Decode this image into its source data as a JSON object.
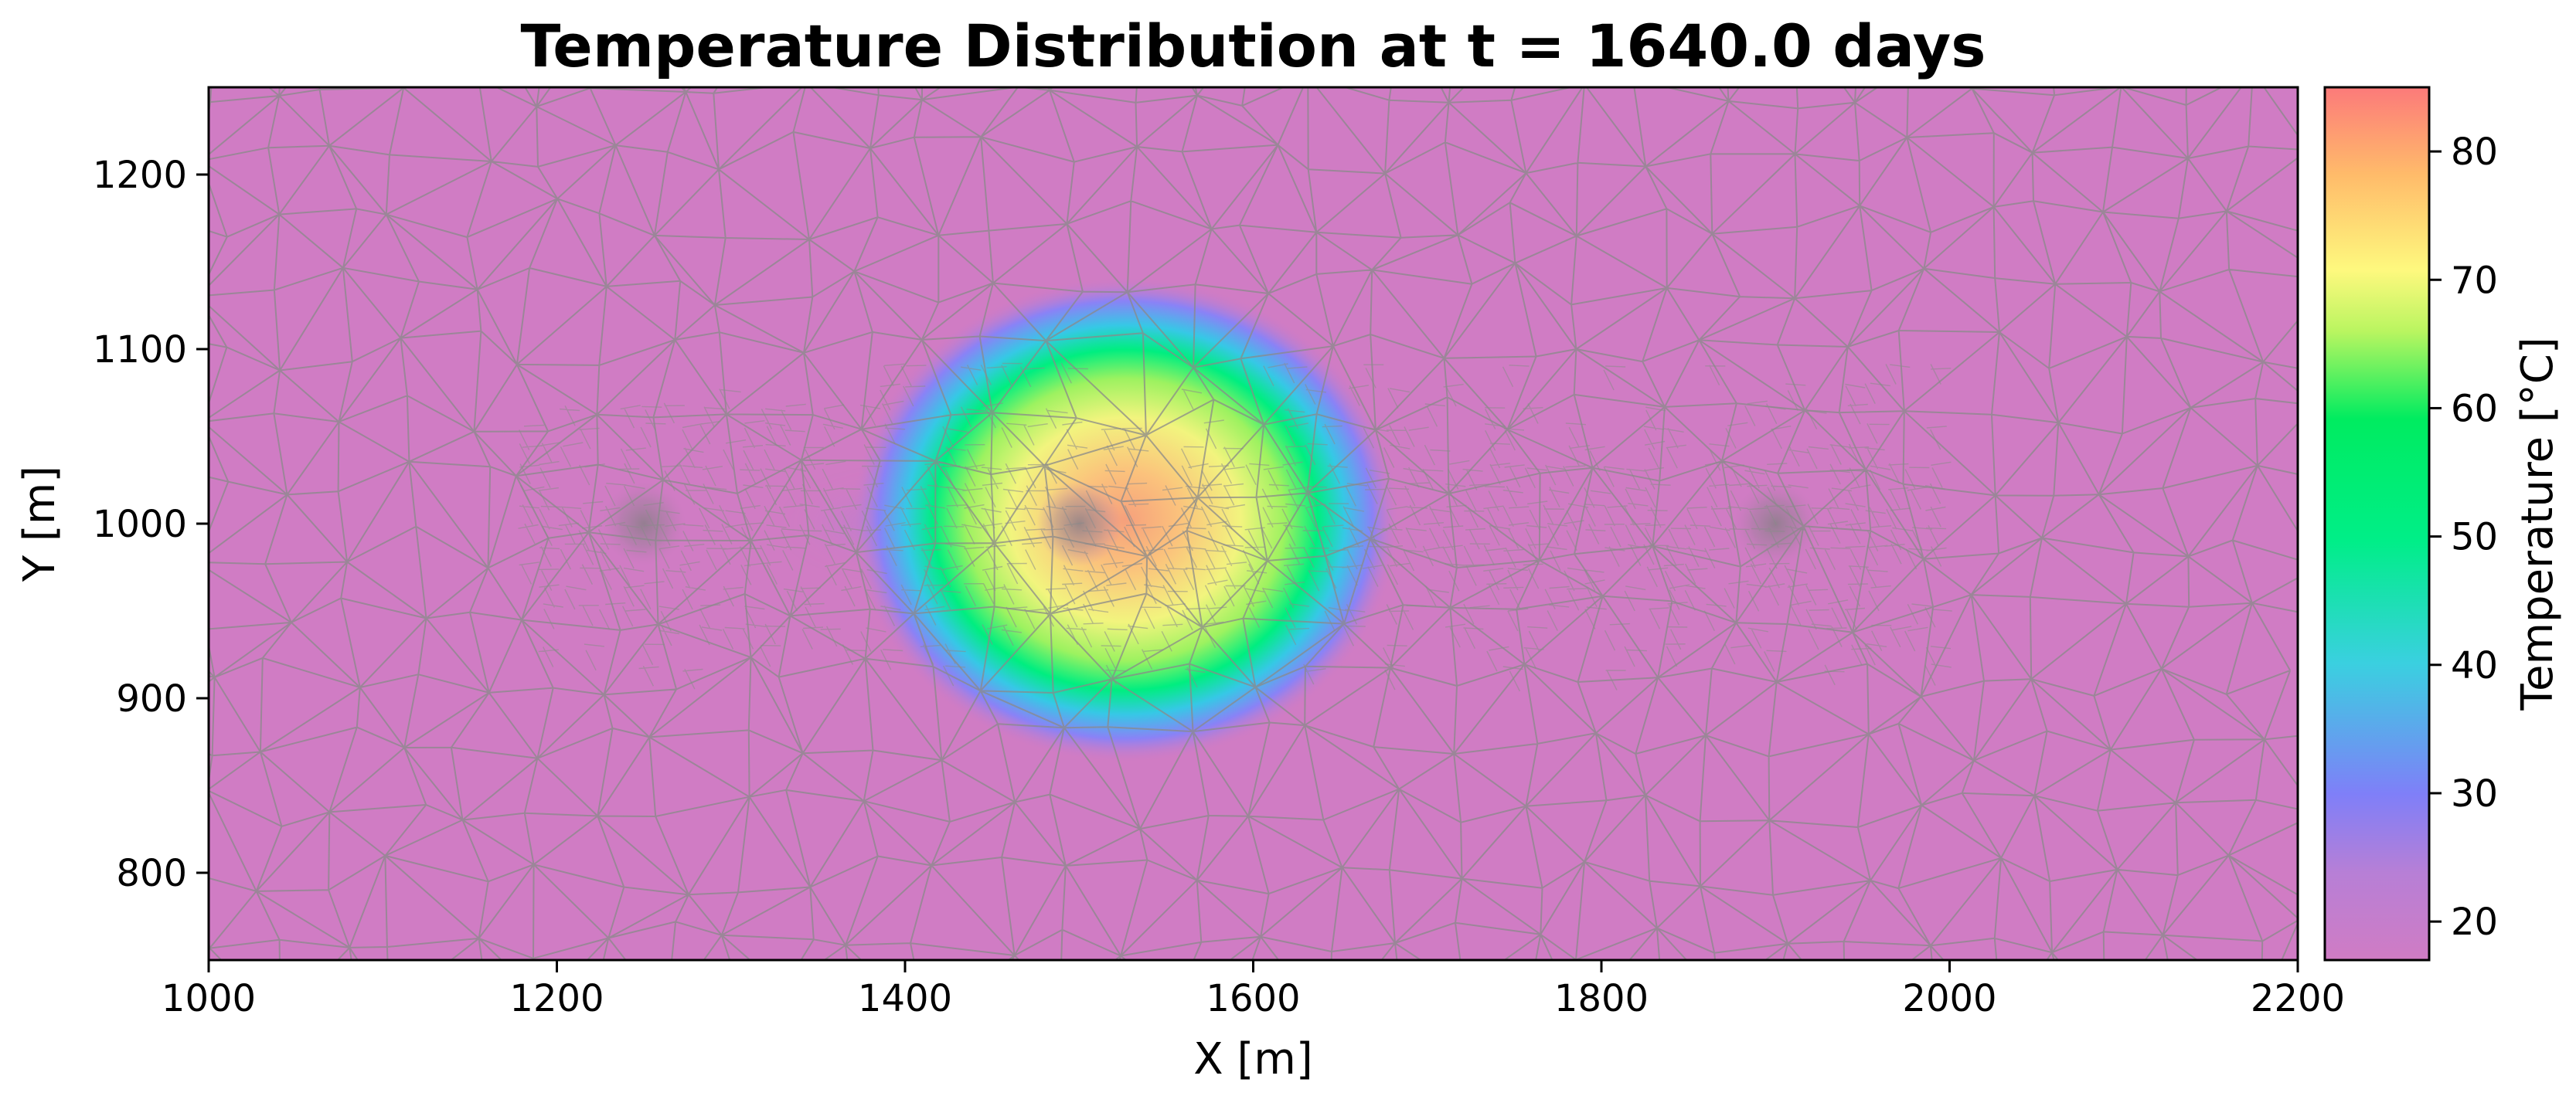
{
  "chart_data": {
    "type": "heatmap",
    "title": "Temperature Distribution at t = 1640.0 days",
    "xlabel": "X [m]",
    "ylabel": "Y [m]",
    "xlim": [
      1000,
      2200
    ],
    "ylim": [
      750,
      1250
    ],
    "x_ticks": [
      1000,
      1200,
      1400,
      1600,
      1800,
      2000,
      2200
    ],
    "y_ticks": [
      800,
      900,
      1000,
      1100,
      1200
    ],
    "colorbar": {
      "label": "Temperature [°C]",
      "range": [
        17,
        85
      ],
      "ticks": [
        20,
        30,
        40,
        50,
        60,
        70,
        80
      ],
      "colors": [
        "#d07cc4",
        "#7f7ff8",
        "#3ad0e0",
        "#00ee88",
        "#00ec60",
        "#b9f560",
        "#fef97e",
        "#ffbb6a",
        "#fc7a7a"
      ]
    },
    "background_temperature": 19,
    "wells": [
      {
        "x": 1250,
        "y": 1000
      },
      {
        "x": 1500,
        "y": 1000
      },
      {
        "x": 1900,
        "y": 1000
      }
    ],
    "plume": {
      "center_x": 1500,
      "center_y": 1000,
      "peak_temperature": 80
    },
    "mesh": {
      "shown": true,
      "color": "#8a8a8a"
    },
    "grid": false,
    "legend": "none"
  }
}
